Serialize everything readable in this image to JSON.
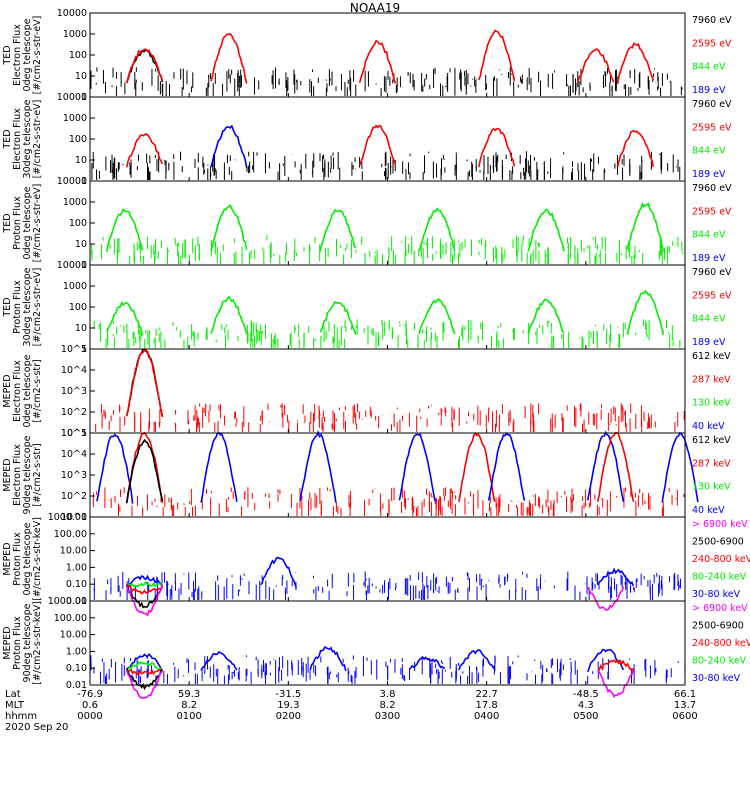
{
  "title": "NOAA19",
  "date": "2020 Sep 20",
  "colors": {
    "black": "#000000",
    "red": "#ff0000",
    "green": "#00ee00",
    "blue": "#0000ff",
    "magenta": "#ff00ff"
  },
  "footer": {
    "rows": [
      {
        "label": "Lat",
        "values": [
          "-76.9",
          "59.3",
          "-31.5",
          "3.8",
          "22.7",
          "-48.5",
          "66.1"
        ]
      },
      {
        "label": "MLT",
        "values": [
          "0.6",
          "8.2",
          "19.3",
          "8.2",
          "17.8",
          "4.3",
          "13.7"
        ]
      },
      {
        "label": "hhmm",
        "values": [
          "0000",
          "0100",
          "0200",
          "0300",
          "0400",
          "0500",
          "0600"
        ]
      }
    ]
  },
  "chart_data": [
    {
      "type": "scatter",
      "ylabel": [
        "TED",
        "Electron Flux",
        "0deg telescope",
        "[#/cm2-s-str-eV]"
      ],
      "scale": "log",
      "ylim": [
        1,
        10000
      ],
      "yticks": [
        "1",
        "10",
        "100",
        "1000",
        "10000"
      ],
      "series": [
        {
          "name": "7960 eV",
          "color": "black"
        },
        {
          "name": "2595 eV",
          "color": "red"
        },
        {
          "name": "844 eV",
          "color": "green"
        },
        {
          "name": "189 eV",
          "color": "blue"
        }
      ],
      "dominant": "black",
      "bumps": [
        {
          "t": 0.55,
          "h": 2.2,
          "c": "black"
        },
        {
          "t": 0.55,
          "h": 2.3,
          "c": "red"
        },
        {
          "t": 1.4,
          "h": 3.0,
          "c": "red"
        },
        {
          "t": 2.9,
          "h": 2.6,
          "c": "red"
        },
        {
          "t": 4.1,
          "h": 3.1,
          "c": "red"
        },
        {
          "t": 5.1,
          "h": 2.2,
          "c": "red"
        },
        {
          "t": 5.5,
          "h": 2.5,
          "c": "red"
        }
      ]
    },
    {
      "type": "scatter",
      "ylabel": [
        "TED",
        "Electron Flux",
        "30deg telescope",
        "[#/cm2-s-str-eV]"
      ],
      "scale": "log",
      "ylim": [
        1,
        10000
      ],
      "yticks": [
        "1",
        "10",
        "100",
        "1000",
        "10000"
      ],
      "series": [
        {
          "name": "7960 eV",
          "color": "black"
        },
        {
          "name": "2595 eV",
          "color": "red"
        },
        {
          "name": "844 eV",
          "color": "green"
        },
        {
          "name": "189 eV",
          "color": "blue"
        }
      ],
      "dominant": "black",
      "bumps": [
        {
          "t": 0.55,
          "h": 2.2,
          "c": "red"
        },
        {
          "t": 1.4,
          "h": 2.6,
          "c": "blue"
        },
        {
          "t": 2.9,
          "h": 2.6,
          "c": "red"
        },
        {
          "t": 4.1,
          "h": 2.5,
          "c": "red"
        },
        {
          "t": 5.5,
          "h": 2.4,
          "c": "red"
        }
      ]
    },
    {
      "type": "scatter",
      "ylabel": [
        "TED",
        "Proton Flux",
        "0deg telescope",
        "[#/cm2-s-str-eV]"
      ],
      "scale": "log",
      "ylim": [
        1,
        10000
      ],
      "yticks": [
        "1",
        "10",
        "100",
        "1000",
        "10000"
      ],
      "series": [
        {
          "name": "7960 eV",
          "color": "black"
        },
        {
          "name": "2595 eV",
          "color": "red"
        },
        {
          "name": "844 eV",
          "color": "green"
        },
        {
          "name": "189 eV",
          "color": "blue"
        }
      ],
      "dominant": "green",
      "bumps": [
        {
          "t": 0.35,
          "h": 2.6,
          "c": "green"
        },
        {
          "t": 1.4,
          "h": 2.8,
          "c": "green"
        },
        {
          "t": 2.5,
          "h": 2.6,
          "c": "green"
        },
        {
          "t": 3.5,
          "h": 2.6,
          "c": "green"
        },
        {
          "t": 4.6,
          "h": 2.6,
          "c": "green"
        },
        {
          "t": 5.6,
          "h": 2.9,
          "c": "green"
        }
      ]
    },
    {
      "type": "scatter",
      "ylabel": [
        "TED",
        "Proton Flux",
        "30deg telescope",
        "[#/cm2-s-str-eV]"
      ],
      "scale": "log",
      "ylim": [
        1,
        10000
      ],
      "yticks": [
        "1",
        "10",
        "100",
        "1000",
        "10000"
      ],
      "series": [
        {
          "name": "7960 eV",
          "color": "black"
        },
        {
          "name": "2595 eV",
          "color": "red"
        },
        {
          "name": "844 eV",
          "color": "green"
        },
        {
          "name": "189 eV",
          "color": "blue"
        }
      ],
      "dominant": "green",
      "bumps": [
        {
          "t": 0.35,
          "h": 2.2,
          "c": "green"
        },
        {
          "t": 1.4,
          "h": 2.4,
          "c": "green"
        },
        {
          "t": 2.5,
          "h": 2.2,
          "c": "green"
        },
        {
          "t": 3.5,
          "h": 2.3,
          "c": "green"
        },
        {
          "t": 4.6,
          "h": 2.3,
          "c": "green"
        },
        {
          "t": 5.6,
          "h": 2.7,
          "c": "green"
        }
      ]
    },
    {
      "type": "scatter",
      "ylabel": [
        "MEPED",
        "Electron Flux",
        "0deg telescope",
        "[#/cm2-s-str]"
      ],
      "scale": "log",
      "ylim": [
        10,
        100000
      ],
      "yticks": [
        "10^1",
        "10^2",
        "10^3",
        "10^4",
        "10^5"
      ],
      "series": [
        {
          "name": "612 keV",
          "color": "black"
        },
        {
          "name": "287 keV",
          "color": "red"
        },
        {
          "name": "130 keV",
          "color": "green"
        },
        {
          "name": "40 keV",
          "color": "blue"
        }
      ],
      "dominant": "red",
      "bumps": [
        {
          "t": 0.55,
          "h": 4.2,
          "c": "black"
        },
        {
          "t": 0.55,
          "h": 4.3,
          "c": "red"
        }
      ]
    },
    {
      "type": "scatter",
      "ylabel": [
        "MEPED",
        "Electron Flux",
        "90deg telescope",
        "[#/cm2-s-str]"
      ],
      "scale": "log",
      "ylim": [
        10,
        100000
      ],
      "yticks": [
        "10^1",
        "10^2",
        "10^3",
        "10^4",
        "10^5"
      ],
      "series": [
        {
          "name": "612 keV",
          "color": "black"
        },
        {
          "name": "287 keV",
          "color": "red"
        },
        {
          "name": "130 keV",
          "color": "green"
        },
        {
          "name": "40 keV",
          "color": "blue"
        }
      ],
      "dominant": "red",
      "bumps": [
        {
          "t": 0.25,
          "h": 4.8,
          "c": "blue"
        },
        {
          "t": 0.55,
          "h": 4.0,
          "c": "red"
        },
        {
          "t": 0.55,
          "h": 3.6,
          "c": "black"
        },
        {
          "t": 1.3,
          "h": 4.4,
          "c": "blue"
        },
        {
          "t": 2.3,
          "h": 4.6,
          "c": "blue"
        },
        {
          "t": 3.3,
          "h": 4.3,
          "c": "blue"
        },
        {
          "t": 3.9,
          "h": 4.3,
          "c": "red"
        },
        {
          "t": 4.2,
          "h": 4.5,
          "c": "blue"
        },
        {
          "t": 5.2,
          "h": 4.8,
          "c": "blue"
        },
        {
          "t": 5.3,
          "h": 4.4,
          "c": "red"
        },
        {
          "t": 5.95,
          "h": 4.2,
          "c": "blue"
        }
      ]
    },
    {
      "type": "scatter",
      "ylabel": [
        "MEPED",
        "Proton Flux",
        "0deg telescope",
        "[#/cm2-s-str-keV]"
      ],
      "scale": "log",
      "ylim": [
        0.01,
        1000
      ],
      "yticks": [
        "0.01",
        "0.10",
        "1.00",
        "10.00",
        "100.00",
        "1000.00"
      ],
      "series": [
        {
          "name": "> 6900 keV",
          "color": "magenta"
        },
        {
          "name": "2500-6900",
          "color": "black"
        },
        {
          "name": "240-800 keV",
          "color": "red"
        },
        {
          "name": "80-240 keV",
          "color": "green"
        },
        {
          "name": "30-80 keV",
          "color": "blue"
        }
      ],
      "dominant": "blue",
      "bumps": [
        {
          "t": 0.55,
          "h": 1.4,
          "c": "blue"
        },
        {
          "t": 0.55,
          "h": 1.0,
          "c": "green"
        },
        {
          "t": 0.55,
          "h": 0.5,
          "c": "red"
        },
        {
          "t": 0.55,
          "h": -0.3,
          "c": "black"
        },
        {
          "t": 0.55,
          "h": -0.8,
          "c": "magenta"
        },
        {
          "t": 1.9,
          "h": 2.5,
          "c": "blue"
        },
        {
          "t": 5.3,
          "h": 1.8,
          "c": "blue"
        },
        {
          "t": 5.2,
          "h": -0.5,
          "c": "magenta"
        }
      ]
    },
    {
      "type": "scatter",
      "ylabel": [
        "MEPED",
        "Proton Flux",
        "90deg telescope",
        "[#/cm2-s-str-keV]"
      ],
      "scale": "log",
      "ylim": [
        0.01,
        1000
      ],
      "yticks": [
        "0.01",
        "0.10",
        "1.00",
        "10.00",
        "100.00",
        "1000.00"
      ],
      "series": [
        {
          "name": "> 6900 keV",
          "color": "magenta"
        },
        {
          "name": "2500-6900",
          "color": "black"
        },
        {
          "name": "240-800 keV",
          "color": "red"
        },
        {
          "name": "80-240 keV",
          "color": "green"
        },
        {
          "name": "30-80 keV",
          "color": "blue"
        }
      ],
      "dominant": "blue",
      "bumps": [
        {
          "t": 0.55,
          "h": 1.8,
          "c": "blue"
        },
        {
          "t": 0.55,
          "h": 1.3,
          "c": "green"
        },
        {
          "t": 0.55,
          "h": 0.7,
          "c": "red"
        },
        {
          "t": 0.55,
          "h": -0.1,
          "c": "black"
        },
        {
          "t": 0.55,
          "h": -0.8,
          "c": "magenta"
        },
        {
          "t": 1.3,
          "h": 1.9,
          "c": "blue"
        },
        {
          "t": 2.4,
          "h": 2.2,
          "c": "blue"
        },
        {
          "t": 3.4,
          "h": 1.6,
          "c": "blue"
        },
        {
          "t": 3.9,
          "h": 2.0,
          "c": "blue"
        },
        {
          "t": 5.2,
          "h": 2.1,
          "c": "blue"
        },
        {
          "t": 5.3,
          "h": 1.4,
          "c": "red"
        },
        {
          "t": 5.3,
          "h": -0.6,
          "c": "magenta"
        }
      ]
    }
  ]
}
